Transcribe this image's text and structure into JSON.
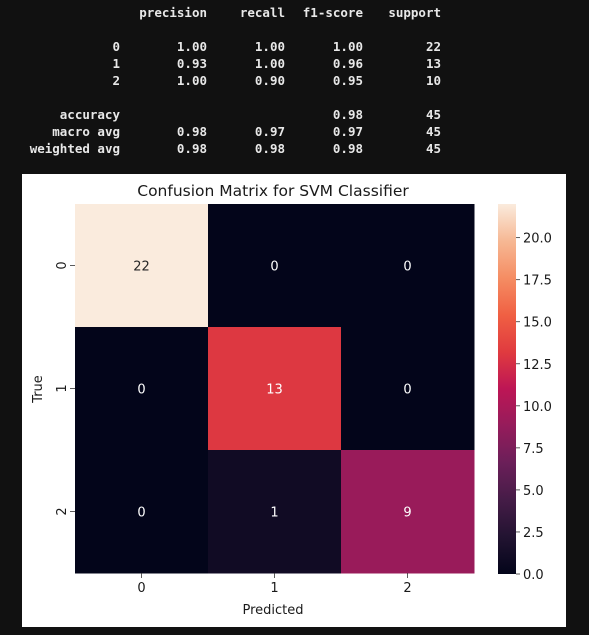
{
  "report": {
    "headers": [
      "precision",
      "recall",
      "f1-score",
      "support"
    ],
    "rows": [
      {
        "label": "0",
        "precision": "1.00",
        "recall": "1.00",
        "f1": "1.00",
        "support": "22"
      },
      {
        "label": "1",
        "precision": "0.93",
        "recall": "1.00",
        "f1": "0.96",
        "support": "13"
      },
      {
        "label": "2",
        "precision": "1.00",
        "recall": "0.90",
        "f1": "0.95",
        "support": "10"
      },
      {
        "label": "accuracy",
        "precision": "",
        "recall": "",
        "f1": "0.98",
        "support": "45"
      },
      {
        "label": "macro avg",
        "precision": "0.98",
        "recall": "0.97",
        "f1": "0.97",
        "support": "45"
      },
      {
        "label": "weighted avg",
        "precision": "0.98",
        "recall": "0.98",
        "f1": "0.98",
        "support": "45"
      }
    ]
  },
  "chart_data": {
    "type": "heatmap",
    "title": "Confusion Matrix for SVM Classifier",
    "xlabel": "Predicted",
    "ylabel": "True",
    "x_categories": [
      "0",
      "1",
      "2"
    ],
    "y_categories": [
      "0",
      "1",
      "2"
    ],
    "matrix": [
      [
        22,
        0,
        0
      ],
      [
        0,
        13,
        0
      ],
      [
        0,
        1,
        9
      ]
    ],
    "colorbar": {
      "min": 0,
      "max": 22,
      "ticks": [
        "0.0",
        "2.5",
        "5.0",
        "7.5",
        "10.0",
        "12.5",
        "15.0",
        "17.5",
        "20.0"
      ],
      "colormap": "rocket"
    }
  }
}
